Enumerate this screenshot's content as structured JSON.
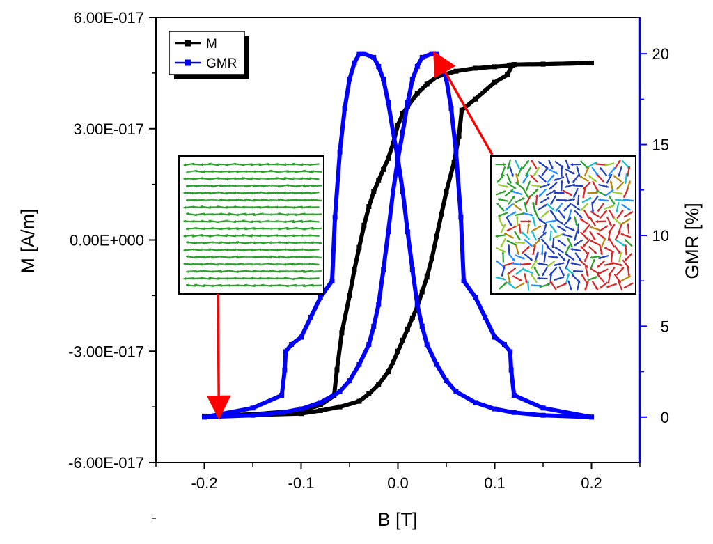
{
  "chart_data": {
    "type": "line",
    "title": "",
    "xlabel": "B [T]",
    "ylabel_left": "M [A/m]",
    "ylabel_right": "GMR [%]",
    "xlim": [
      -0.25,
      0.25
    ],
    "ylim_left": [
      -6e-17,
      6e-17
    ],
    "ylim_right": [
      -2.5,
      22
    ],
    "x_ticks": [
      "-0.2",
      "-0.1",
      "0.0",
      "0.1",
      "0.2"
    ],
    "x_tick_values": [
      -0.2,
      -0.1,
      0.0,
      0.1,
      0.2
    ],
    "y_left_ticks": [
      "6.00E-017",
      "3.00E-017",
      "0.00E+000",
      "-3.00E-017",
      "-6.00E-017"
    ],
    "y_left_tick_values": [
      6e-17,
      3e-17,
      0.0,
      -3e-17,
      -6e-17
    ],
    "y_right_ticks": [
      "20",
      "15",
      "10",
      "5",
      "0"
    ],
    "y_right_tick_values": [
      20,
      15,
      10,
      5,
      0
    ],
    "colors": {
      "m": "#000000",
      "gmr": "#0000ff",
      "annotation": "#ff0000",
      "right_axis": "#0000ff"
    },
    "legend": {
      "placement": "top-left",
      "entries": [
        "M",
        "GMR"
      ]
    },
    "series": [
      {
        "name": "M",
        "axis": "left",
        "branches": [
          {
            "x": [
              -0.2,
              -0.15,
              -0.1,
              -0.08,
              -0.066,
              -0.063,
              -0.058,
              -0.05,
              -0.045,
              -0.04,
              -0.035,
              -0.03,
              -0.025,
              -0.02,
              -0.015,
              -0.01,
              -0.005,
              0.0,
              0.005,
              0.01,
              0.02,
              0.03,
              0.04,
              0.06,
              0.08,
              0.1,
              0.115,
              0.117,
              0.12,
              0.15,
              0.2
            ],
            "y": [
              -4.75e-17,
              -4.7e-17,
              -4.6e-17,
              -4.45e-17,
              -4.2e-17,
              -3.5e-17,
              -2.5e-17,
              -1.5e-17,
              -8e-18,
              -2e-18,
              4e-18,
              9e-18,
              1.3e-17,
              1.6e-17,
              1.9e-17,
              2.2e-17,
              2.6e-17,
              3.1e-17,
              3.4e-17,
              3.6e-17,
              3.95e-17,
              4.2e-17,
              4.4e-17,
              4.55e-17,
              4.63e-17,
              4.67e-17,
              4.7e-17,
              4.72e-17,
              4.73e-17,
              4.74e-17,
              4.77e-17
            ]
          },
          {
            "x": [
              0.2,
              0.15,
              0.12,
              0.118,
              0.113,
              0.1,
              0.08,
              0.066,
              0.063,
              0.058,
              0.05,
              0.045,
              0.04,
              0.035,
              0.03,
              0.025,
              0.02,
              0.015,
              0.01,
              0.005,
              0.0,
              -0.005,
              -0.01,
              -0.02,
              -0.03,
              -0.04,
              -0.06,
              -0.08,
              -0.1,
              -0.15,
              -0.2
            ],
            "y": [
              4.77e-17,
              4.74e-17,
              4.73e-17,
              4.7e-17,
              4.45e-17,
              4.25e-17,
              3.8e-17,
              3.5e-17,
              2.8e-17,
              2.1e-17,
              1.3e-17,
              7e-18,
              1e-18,
              -5e-18,
              -1e-17,
              -1.4e-17,
              -1.8e-17,
              -2.1e-17,
              -2.4e-17,
              -2.7e-17,
              -3e-17,
              -3.3e-17,
              -3.55e-17,
              -3.9e-17,
              -4.15e-17,
              -4.35e-17,
              -4.5e-17,
              -4.6e-17,
              -4.68e-17,
              -4.72e-17,
              -4.75e-17
            ]
          }
        ]
      },
      {
        "name": "GMR",
        "axis": "right",
        "branches": [
          {
            "x": [
              -0.2,
              -0.15,
              -0.12,
              -0.117,
              -0.116,
              -0.11,
              -0.1,
              -0.09,
              -0.08,
              -0.068,
              -0.065,
              -0.06,
              -0.055,
              -0.05,
              -0.045,
              -0.04,
              -0.037,
              -0.035,
              -0.025,
              -0.02,
              -0.015,
              -0.01,
              -0.005,
              0.0,
              0.005,
              0.01,
              0.015,
              0.02,
              0.025,
              0.03,
              0.04,
              0.05,
              0.06,
              0.08,
              0.1,
              0.12,
              0.15,
              0.2
            ],
            "y": [
              0.0,
              0.5,
              1.2,
              2.6,
              3.6,
              4.0,
              4.4,
              5.5,
              6.6,
              7.5,
              11.0,
              14.6,
              17.0,
              18.6,
              19.5,
              20.0,
              20.0,
              20.0,
              19.8,
              19.3,
              18.6,
              17.3,
              15.7,
              14.2,
              12.4,
              10.2,
              8.1,
              6.2,
              5.0,
              4.0,
              2.9,
              2.0,
              1.4,
              0.8,
              0.45,
              0.25,
              0.1,
              0.0
            ]
          },
          {
            "x": [
              0.2,
              0.15,
              0.12,
              0.117,
              0.116,
              0.11,
              0.1,
              0.09,
              0.08,
              0.068,
              0.065,
              0.06,
              0.055,
              0.05,
              0.045,
              0.04,
              0.037,
              0.035,
              0.025,
              0.02,
              0.015,
              0.01,
              0.005,
              0.0,
              -0.005,
              -0.01,
              -0.015,
              -0.02,
              -0.025,
              -0.03,
              -0.04,
              -0.05,
              -0.06,
              -0.08,
              -0.1,
              -0.12,
              -0.15,
              -0.2
            ],
            "y": [
              0.0,
              0.5,
              1.2,
              2.6,
              3.6,
              4.0,
              4.4,
              5.5,
              6.6,
              7.5,
              11.0,
              14.6,
              17.0,
              18.6,
              19.5,
              20.0,
              20.0,
              20.0,
              19.8,
              19.3,
              18.6,
              17.3,
              15.7,
              14.2,
              12.4,
              10.2,
              8.1,
              6.2,
              5.0,
              4.0,
              2.9,
              2.0,
              1.4,
              0.8,
              0.45,
              0.25,
              0.1,
              0.0
            ]
          }
        ]
      }
    ],
    "annotations": [
      {
        "type": "inset",
        "content": "magnetization-map-saturated",
        "arrow_to": {
          "x": -0.185,
          "y": -4.7e-17,
          "axis": "left"
        }
      },
      {
        "type": "inset",
        "content": "magnetization-map-disordered",
        "arrow_to": {
          "x": 0.037,
          "y": 20.0,
          "axis": "right"
        }
      }
    ]
  }
}
